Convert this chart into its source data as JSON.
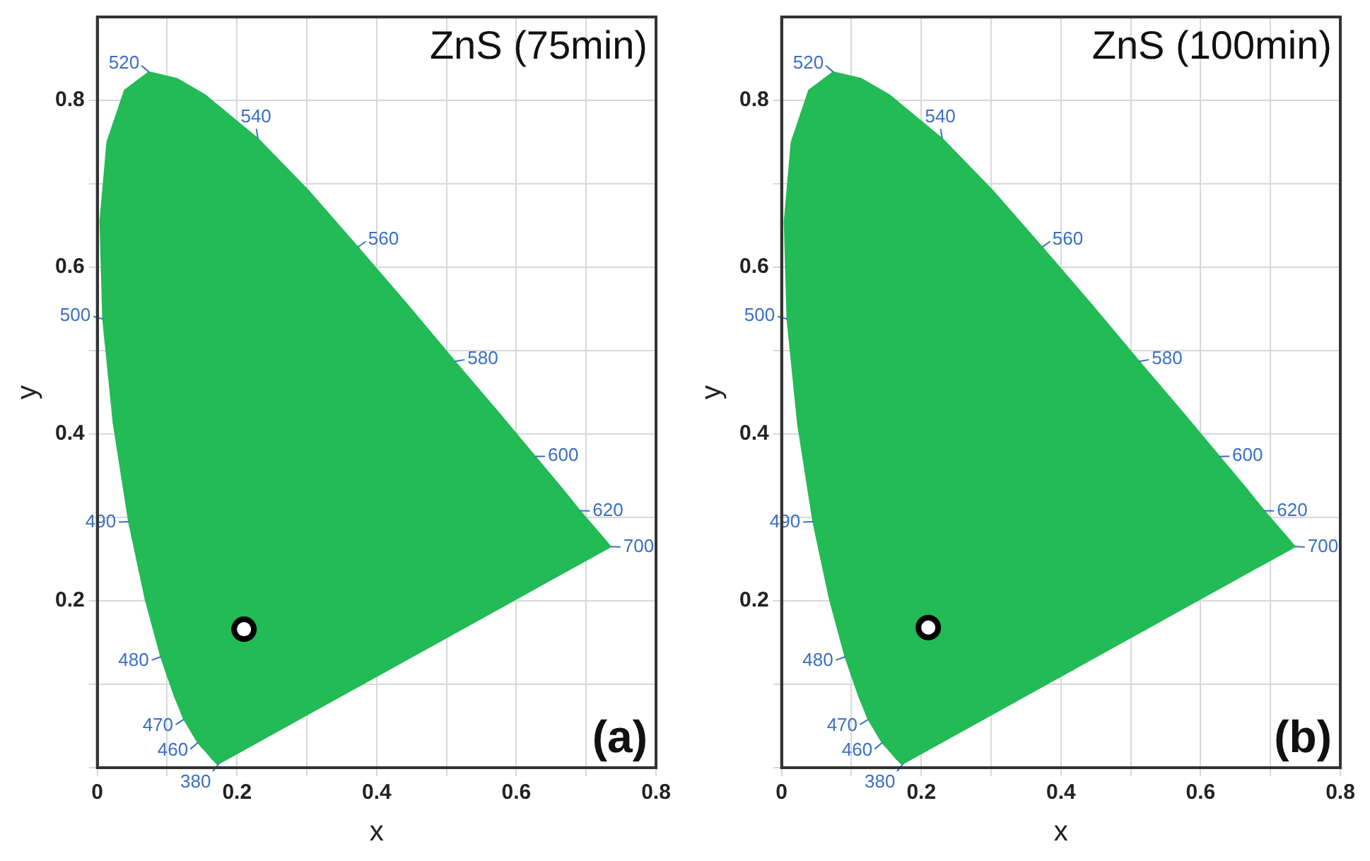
{
  "chart_data": [
    {
      "type": "scatter",
      "xlabel": "x",
      "ylabel": "y",
      "xlim": [
        0,
        0.8
      ],
      "ylim": [
        0,
        0.9
      ],
      "xticks": [
        0,
        {
          "value": 0.1,
          "label": null
        },
        0.2,
        {
          "value": 0.3,
          "label": null
        },
        0.4,
        {
          "value": 0.5,
          "label": null
        },
        0.6,
        {
          "value": 0.7,
          "label": null
        },
        0.8
      ],
      "yticks": [
        {
          "value": 0,
          "label": null
        },
        {
          "value": 0.1,
          "label": null
        },
        0.2,
        {
          "value": 0.3,
          "label": null
        },
        0.4,
        {
          "value": 0.5,
          "label": null
        },
        0.6,
        {
          "value": 0.7,
          "label": null
        },
        0.8
      ],
      "grid": true,
      "legend": false,
      "series": [
        {
          "type": "area",
          "marker": "none",
          "color": "#22bb55",
          "x": [
            0.174,
            0.171,
            0.164,
            0.157,
            0.144,
            0.124,
            0.11,
            0.091,
            0.069,
            0.045,
            0.023,
            0.008,
            0.004,
            0.014,
            0.039,
            0.074,
            0.114,
            0.155,
            0.23,
            0.302,
            0.373,
            0.444,
            0.512,
            0.575,
            0.627,
            0.666,
            0.691,
            0.726,
            0.735,
            0.174
          ],
          "values": [
            0.005,
            0.005,
            0.011,
            0.018,
            0.03,
            0.058,
            0.087,
            0.133,
            0.201,
            0.295,
            0.413,
            0.538,
            0.655,
            0.75,
            0.812,
            0.834,
            0.826,
            0.806,
            0.754,
            0.692,
            0.624,
            0.555,
            0.487,
            0.425,
            0.373,
            0.334,
            0.308,
            0.274,
            0.265,
            0.005
          ]
        },
        {
          "type": "scatter",
          "marker": "circle",
          "color": "#000000",
          "x": [
            0.21
          ],
          "values": [
            0.166
          ]
        }
      ],
      "annotations": [
        "ZnS (75min)",
        "(a)",
        {
          "text": "380",
          "x": 0.174,
          "y": 0.005
        },
        {
          "text": "460",
          "x": 0.144,
          "y": 0.03
        },
        {
          "text": "470",
          "x": 0.124,
          "y": 0.058
        },
        {
          "text": "480",
          "x": 0.091,
          "y": 0.133
        },
        {
          "text": "490",
          "x": 0.045,
          "y": 0.295
        },
        {
          "text": "500",
          "x": 0.008,
          "y": 0.538
        },
        {
          "text": "520",
          "x": 0.074,
          "y": 0.834
        },
        {
          "text": "540",
          "x": 0.23,
          "y": 0.754
        },
        {
          "text": "560",
          "x": 0.373,
          "y": 0.624
        },
        {
          "text": "580",
          "x": 0.512,
          "y": 0.487
        },
        {
          "text": "600",
          "x": 0.627,
          "y": 0.373
        },
        {
          "text": "620",
          "x": 0.691,
          "y": 0.308
        },
        {
          "text": "700",
          "x": 0.735,
          "y": 0.265
        }
      ]
    },
    {
      "type": "scatter",
      "xlabel": "x",
      "ylabel": "y",
      "xlim": [
        0,
        0.8
      ],
      "ylim": [
        0,
        0.9
      ],
      "xticks": [
        0,
        {
          "value": 0.1,
          "label": null
        },
        0.2,
        {
          "value": 0.3,
          "label": null
        },
        0.4,
        {
          "value": 0.5,
          "label": null
        },
        0.6,
        {
          "value": 0.7,
          "label": null
        },
        0.8
      ],
      "yticks": [
        {
          "value": 0,
          "label": null
        },
        {
          "value": 0.1,
          "label": null
        },
        0.2,
        {
          "value": 0.3,
          "label": null
        },
        0.4,
        {
          "value": 0.5,
          "label": null
        },
        0.6,
        {
          "value": 0.7,
          "label": null
        },
        0.8
      ],
      "grid": true,
      "legend": false,
      "series": [
        {
          "type": "area",
          "marker": "none",
          "color": "#22bb55",
          "x": [
            0.174,
            0.171,
            0.164,
            0.157,
            0.144,
            0.124,
            0.11,
            0.091,
            0.069,
            0.045,
            0.023,
            0.008,
            0.004,
            0.014,
            0.039,
            0.074,
            0.114,
            0.155,
            0.23,
            0.302,
            0.373,
            0.444,
            0.512,
            0.575,
            0.627,
            0.666,
            0.691,
            0.726,
            0.735,
            0.174
          ],
          "values": [
            0.005,
            0.005,
            0.011,
            0.018,
            0.03,
            0.058,
            0.087,
            0.133,
            0.201,
            0.295,
            0.413,
            0.538,
            0.655,
            0.75,
            0.812,
            0.834,
            0.826,
            0.806,
            0.754,
            0.692,
            0.624,
            0.555,
            0.487,
            0.425,
            0.373,
            0.334,
            0.308,
            0.274,
            0.265,
            0.005
          ]
        },
        {
          "type": "scatter",
          "marker": "circle",
          "color": "#000000",
          "x": [
            0.21
          ],
          "values": [
            0.168
          ]
        }
      ],
      "annotations": [
        "ZnS (100min)",
        "(b)",
        {
          "text": "380",
          "x": 0.174,
          "y": 0.005
        },
        {
          "text": "460",
          "x": 0.144,
          "y": 0.03
        },
        {
          "text": "470",
          "x": 0.124,
          "y": 0.058
        },
        {
          "text": "480",
          "x": 0.091,
          "y": 0.133
        },
        {
          "text": "490",
          "x": 0.045,
          "y": 0.295
        },
        {
          "text": "500",
          "x": 0.008,
          "y": 0.538
        },
        {
          "text": "520",
          "x": 0.074,
          "y": 0.834
        },
        {
          "text": "540",
          "x": 0.23,
          "y": 0.754
        },
        {
          "text": "560",
          "x": 0.373,
          "y": 0.624
        },
        {
          "text": "580",
          "x": 0.512,
          "y": 0.487
        },
        {
          "text": "600",
          "x": 0.627,
          "y": 0.373
        },
        {
          "text": "620",
          "x": 0.691,
          "y": 0.308
        },
        {
          "text": "700",
          "x": 0.735,
          "y": 0.265
        }
      ]
    }
  ]
}
